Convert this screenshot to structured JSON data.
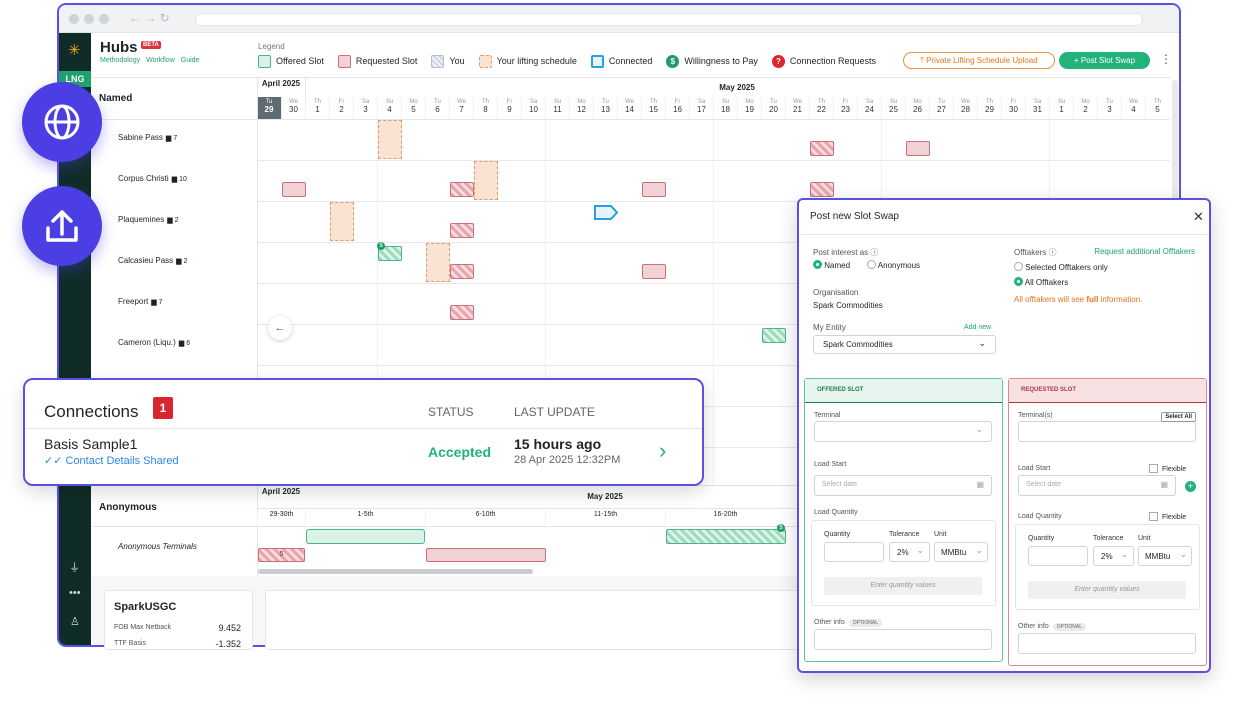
{
  "sidebar": {
    "badge": "LNG"
  },
  "header": {
    "title": "Hubs",
    "badge": "BETA",
    "links": [
      "Methodology",
      "Workflow",
      "Guide"
    ]
  },
  "legend": {
    "label": "Legend",
    "items": [
      "Offered Slot",
      "Requested Slot",
      "You",
      "Your lifting schedule",
      "Connected",
      "Willingness to Pay",
      "Connection Requests"
    ]
  },
  "actions": {
    "upload": "Private Lifting Schedule Upload",
    "post": "Post Slot Swap"
  },
  "named": {
    "title": "Named",
    "months": [
      "April 2025",
      "May 2025"
    ],
    "days": [
      {
        "wd": "Tu",
        "d": "29"
      },
      {
        "wd": "We",
        "d": "30"
      },
      {
        "wd": "Th",
        "d": "1"
      },
      {
        "wd": "Fr",
        "d": "2"
      },
      {
        "wd": "Sa",
        "d": "3"
      },
      {
        "wd": "Su",
        "d": "4"
      },
      {
        "wd": "Mo",
        "d": "5"
      },
      {
        "wd": "Tu",
        "d": "6"
      },
      {
        "wd": "We",
        "d": "7"
      },
      {
        "wd": "Th",
        "d": "8"
      },
      {
        "wd": "Fr",
        "d": "9"
      },
      {
        "wd": "Sa",
        "d": "10"
      },
      {
        "wd": "Su",
        "d": "11"
      },
      {
        "wd": "Mo",
        "d": "12"
      },
      {
        "wd": "Tu",
        "d": "13"
      },
      {
        "wd": "We",
        "d": "14"
      },
      {
        "wd": "Th",
        "d": "15"
      },
      {
        "wd": "Fr",
        "d": "16"
      },
      {
        "wd": "Sa",
        "d": "17"
      },
      {
        "wd": "Su",
        "d": "18"
      },
      {
        "wd": "Mo",
        "d": "19"
      },
      {
        "wd": "Tu",
        "d": "20"
      },
      {
        "wd": "We",
        "d": "21"
      },
      {
        "wd": "Th",
        "d": "22"
      },
      {
        "wd": "Fr",
        "d": "23"
      },
      {
        "wd": "Sa",
        "d": "24"
      },
      {
        "wd": "Su",
        "d": "25"
      },
      {
        "wd": "Mo",
        "d": "26"
      },
      {
        "wd": "Tu",
        "d": "27"
      },
      {
        "wd": "We",
        "d": "28"
      },
      {
        "wd": "Th",
        "d": "29"
      },
      {
        "wd": "Fr",
        "d": "30"
      },
      {
        "wd": "Sa",
        "d": "31"
      },
      {
        "wd": "Su",
        "d": "1"
      },
      {
        "wd": "Mo",
        "d": "2"
      },
      {
        "wd": "Tu",
        "d": "3"
      },
      {
        "wd": "We",
        "d": "4"
      },
      {
        "wd": "Th",
        "d": "5"
      }
    ],
    "terminals": [
      {
        "name": "Sabine Pass",
        "count": "7"
      },
      {
        "name": "Corpus Christi",
        "count": "10"
      },
      {
        "name": "Plaquemines",
        "count": "2"
      },
      {
        "name": "Calcasieu Pass",
        "count": "2"
      },
      {
        "name": "Freeport",
        "count": "7"
      },
      {
        "name": "Cameron (Liqu.)",
        "count": "6"
      }
    ]
  },
  "connections": {
    "title": "Connections",
    "count": "1",
    "status_header": "STATUS",
    "update_header": "LAST UPDATE",
    "row": {
      "name": "Basis Sample1",
      "detail": "Contact Details Shared",
      "status": "Accepted",
      "ago": "15 hours ago",
      "date": "28 Apr 2025 12:32PM"
    }
  },
  "anonymous": {
    "title": "Anonymous",
    "months": [
      "April 2025",
      "May 2025"
    ],
    "periods": [
      "29-30th",
      "1-5th",
      "6-10th",
      "11-15th",
      "16-20th"
    ],
    "row": "Anonymous Terminals",
    "badge": "5"
  },
  "price_card": {
    "title": "SparkUSGC",
    "rows": [
      {
        "label": "FOB Max Netback",
        "value": "9.452"
      },
      {
        "label": "TTF Basis",
        "value": "-1.352"
      }
    ]
  },
  "modal": {
    "title": "Post new Slot Swap",
    "post_as": {
      "label": "Post interest as",
      "options": [
        "Named",
        "Anonymous"
      ]
    },
    "offtakers": {
      "label": "Offtakers",
      "link": "Request additional Offtakers",
      "options": [
        "Selected Offtakers only",
        "All Offtakers"
      ],
      "note_pre": "All offtakers will see",
      "note_bold": "full",
      "note_post": "information."
    },
    "organisation": {
      "label": "Organisation",
      "value": "Spark Commodities"
    },
    "entity": {
      "label": "My Entity",
      "link": "Add new",
      "value": "Spark Commodities"
    },
    "offered": {
      "header": "OFFERED SLOT",
      "terminal": "Terminal",
      "load_start": "Load Start",
      "date_placeholder": "Select date",
      "load_quantity": "Load Quantity",
      "quantity": "Quantity",
      "tolerance": "Tolerance",
      "unit": "Unit",
      "tolerance_value": "2%",
      "unit_value": "MMBtu",
      "enter": "Enter quantity values",
      "other": "Other info",
      "optional": "OPTIONAL"
    },
    "requested": {
      "header": "REQUESTED SLOT",
      "terminal": "Terminal(s)",
      "select_all": "Select All",
      "load_start": "Load Start",
      "flexible_start": "Flexible",
      "date_placeholder": "Select date",
      "load_quantity": "Load Quantity",
      "flexible_quantity": "Flexible",
      "quantity": "Quantity",
      "tolerance": "Tolerance",
      "unit": "Unit",
      "tolerance_value": "2%",
      "unit_value": "MMBtu",
      "enter": "Enter quantity values",
      "other": "Other info",
      "optional": "OPTIONAL"
    }
  }
}
